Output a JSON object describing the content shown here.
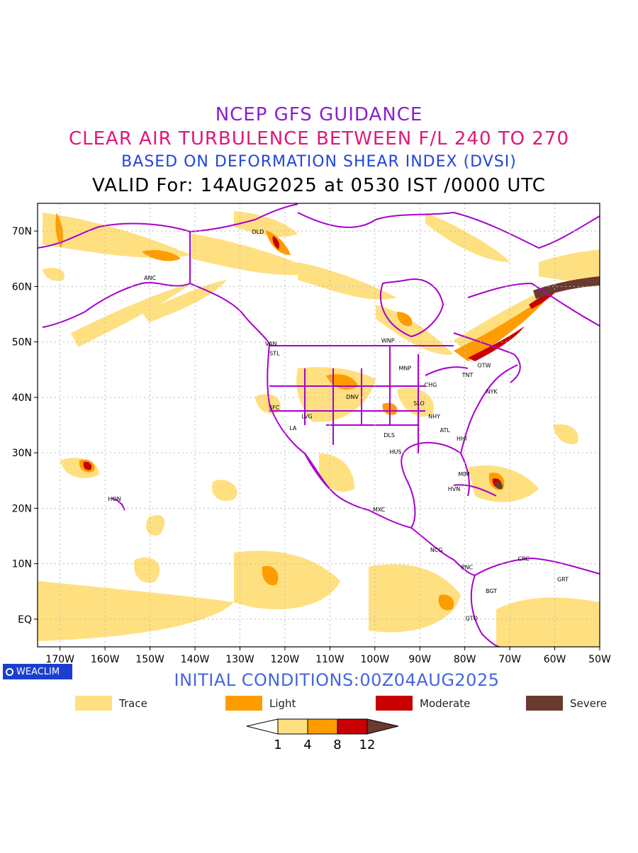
{
  "header": {
    "line1": "NCEP GFS GUIDANCE",
    "line2": "CLEAR AIR TURBULENCE BETWEEN F/L 240 TO 270",
    "line3": "BASED ON DEFORMATION SHEAR INDEX (DVSI)",
    "line4": "VALID For: 14AUG2025 at 0530 IST /0000 UTC"
  },
  "map": {
    "lon_range": [
      -175,
      -50
    ],
    "lat_range": [
      -5,
      75
    ],
    "x_ticks": [
      "170W",
      "160W",
      "150W",
      "140W",
      "130W",
      "120W",
      "110W",
      "100W",
      "90W",
      "80W",
      "70W",
      "60W",
      "50W"
    ],
    "y_ticks": [
      "EQ",
      "10N",
      "20N",
      "30N",
      "40N",
      "50N",
      "60N",
      "70N"
    ],
    "stations": [
      {
        "code": "ANC",
        "lon": -150.0,
        "lat": 61.2
      },
      {
        "code": "DLD",
        "lon": -126.0,
        "lat": 69.5
      },
      {
        "code": "VAN",
        "lon": -123.1,
        "lat": 49.3
      },
      {
        "code": "STL",
        "lon": -122.3,
        "lat": 47.6
      },
      {
        "code": "WNP",
        "lon": -97.1,
        "lat": 49.9
      },
      {
        "code": "MNP",
        "lon": -93.3,
        "lat": 44.9
      },
      {
        "code": "OTW",
        "lon": -75.7,
        "lat": 45.4
      },
      {
        "code": "TNT",
        "lon": -79.4,
        "lat": 43.7
      },
      {
        "code": "CHG",
        "lon": -87.6,
        "lat": 41.9
      },
      {
        "code": "NYK",
        "lon": -74.0,
        "lat": 40.7
      },
      {
        "code": "SFC",
        "lon": -122.4,
        "lat": 37.8
      },
      {
        "code": "DNV",
        "lon": -105.0,
        "lat": 39.7
      },
      {
        "code": "SLO",
        "lon": -90.2,
        "lat": 38.6
      },
      {
        "code": "LVG",
        "lon": -115.1,
        "lat": 36.2
      },
      {
        "code": "NHY",
        "lon": -86.8,
        "lat": 36.2
      },
      {
        "code": "LA",
        "lon": -118.2,
        "lat": 34.1
      },
      {
        "code": "ATL",
        "lon": -84.4,
        "lat": 33.7
      },
      {
        "code": "DLS",
        "lon": -96.8,
        "lat": 32.8
      },
      {
        "code": "HHI",
        "lon": -80.7,
        "lat": 32.2
      },
      {
        "code": "HUS",
        "lon": -95.4,
        "lat": 29.8
      },
      {
        "code": "MIM",
        "lon": -80.2,
        "lat": 25.8
      },
      {
        "code": "HVN",
        "lon": -82.4,
        "lat": 23.1
      },
      {
        "code": "HON",
        "lon": -157.9,
        "lat": 21.3
      },
      {
        "code": "MXC",
        "lon": -99.1,
        "lat": 19.4
      },
      {
        "code": "NCG",
        "lon": -86.3,
        "lat": 12.1
      },
      {
        "code": "CRC",
        "lon": -66.9,
        "lat": 10.5
      },
      {
        "code": "PNC",
        "lon": -79.5,
        "lat": 8.98
      },
      {
        "code": "GRT",
        "lon": -58.2,
        "lat": 6.8
      },
      {
        "code": "BGT",
        "lon": -74.1,
        "lat": 4.7
      },
      {
        "code": "QTO",
        "lon": -78.5,
        "lat": -0.2
      }
    ]
  },
  "colors": {
    "trace": "#ffe080",
    "light": "#ff9c00",
    "moderate": "#c80000",
    "severe": "#6a3a2e",
    "coast": "#aa00cc",
    "grid": "#bbbbbb"
  },
  "credit": "WEACLIM",
  "initial_conditions": "INITIAL CONDITIONS:00Z04AUG2025",
  "legend": [
    {
      "label": "Trace",
      "color": "#ffe080"
    },
    {
      "label": "Light",
      "color": "#ff9c00"
    },
    {
      "label": "Moderate",
      "color": "#c80000"
    },
    {
      "label": "Severe",
      "color": "#6a3a2e"
    }
  ],
  "colorbar": {
    "ticks": [
      "1",
      "4",
      "8",
      "12"
    ]
  }
}
